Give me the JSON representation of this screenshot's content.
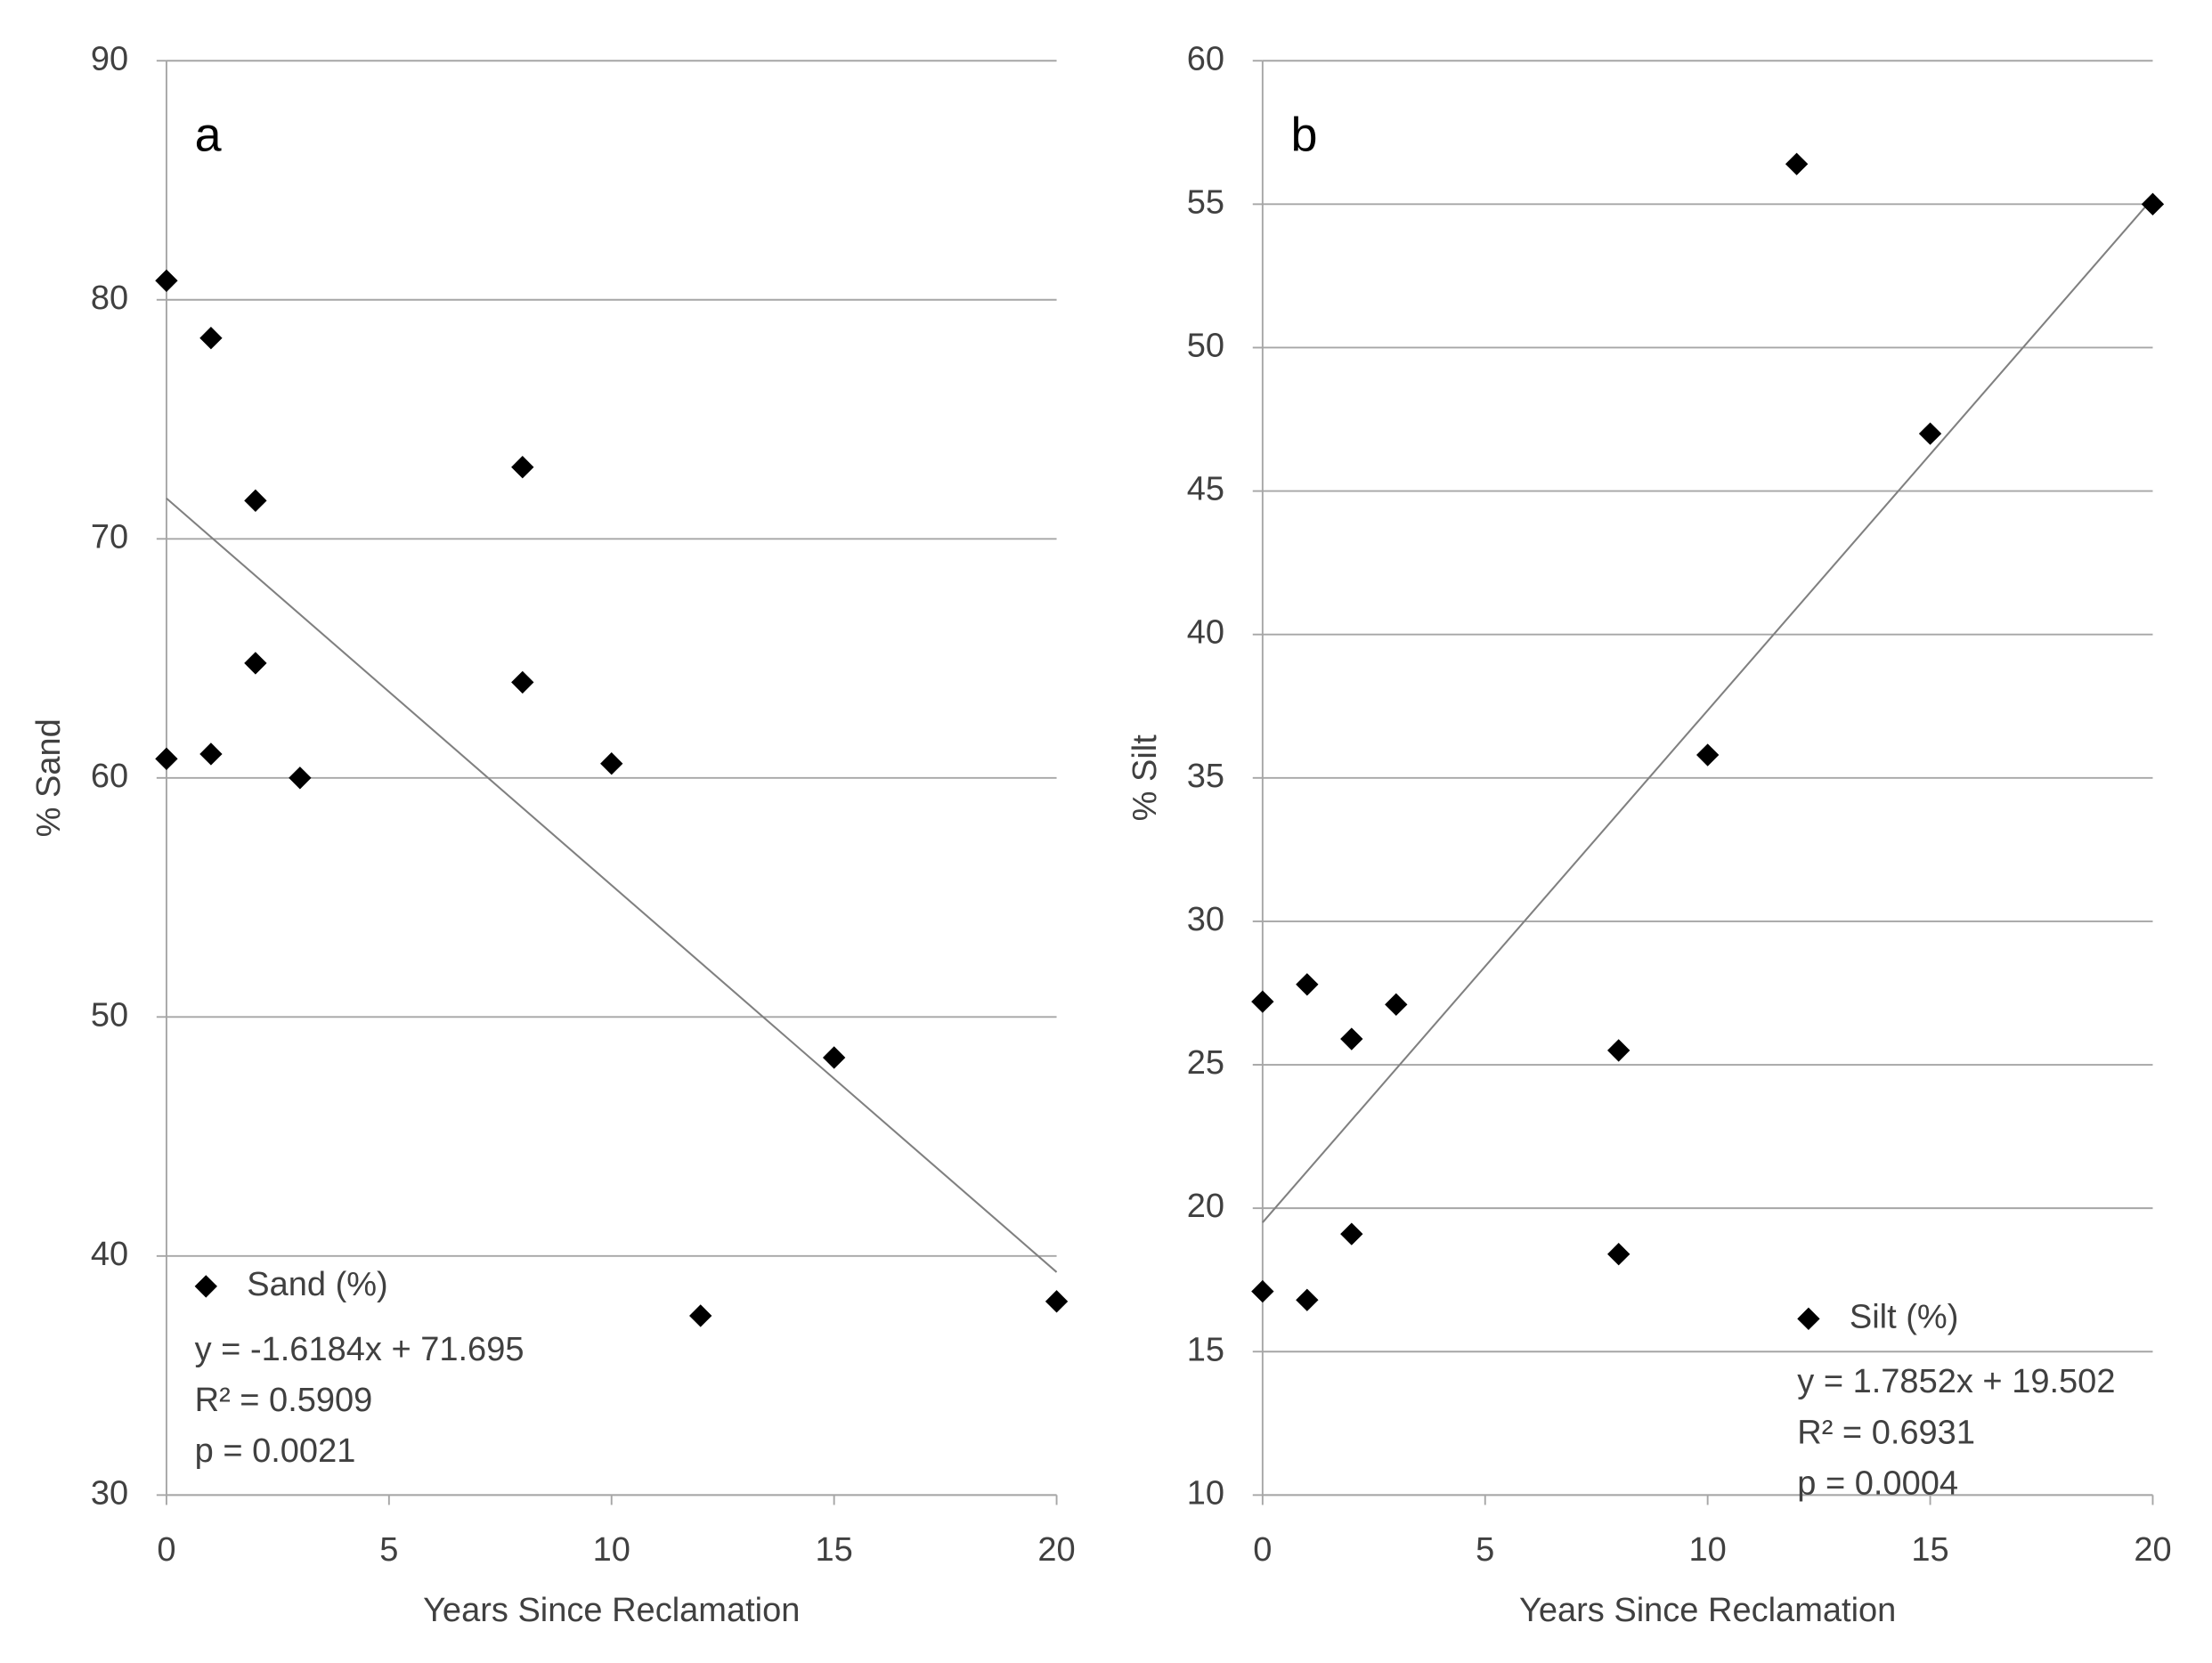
{
  "chart_data": [
    {
      "type": "scatter",
      "panel_label": "a",
      "x_label": "Years Since Reclamation",
      "y_label": "% Sand",
      "xlim": [
        0,
        20
      ],
      "ylim": [
        30,
        90
      ],
      "xticks": [
        0,
        5,
        10,
        15,
        20
      ],
      "yticks": [
        30,
        40,
        50,
        60,
        70,
        80,
        90
      ],
      "grid": true,
      "legend": "lower left",
      "series": [
        {
          "name": "Sand (%)",
          "color": "#000000",
          "x": [
            0,
            1,
            2,
            8,
            2,
            8,
            0,
            1,
            3,
            10,
            15,
            12,
            20
          ],
          "values": [
            80.8,
            78.4,
            71.6,
            73.0,
            64.8,
            64.0,
            60.8,
            61.0,
            60.0,
            60.6,
            48.3,
            37.5,
            38.1
          ]
        }
      ],
      "trendline": {
        "slope": -1.6184,
        "intercept": 71.695,
        "color": "#808080"
      },
      "annotations": [
        "y = -1.6184x + 71.695",
        "R² = 0.5909",
        "p = 0.0021"
      ]
    },
    {
      "type": "scatter",
      "panel_label": "b",
      "x_label": "Years Since Reclamation",
      "y_label": "% Silt",
      "xlim": [
        0,
        20
      ],
      "ylim": [
        10,
        60
      ],
      "xticks": [
        0,
        5,
        10,
        15,
        20
      ],
      "yticks": [
        10,
        15,
        20,
        25,
        30,
        35,
        40,
        45,
        50,
        55,
        60
      ],
      "grid": true,
      "legend": "lower right",
      "series": [
        {
          "name": "Silt (%)",
          "color": "#000000",
          "x": [
            0,
            1,
            2,
            3,
            8,
            12,
            20,
            15,
            10,
            2,
            8,
            0,
            1
          ],
          "values": [
            27.2,
            27.8,
            25.9,
            27.1,
            25.5,
            56.4,
            55.0,
            47.0,
            35.8,
            19.1,
            18.4,
            17.1,
            16.8
          ]
        }
      ],
      "trendline": {
        "slope": 1.7852,
        "intercept": 19.502,
        "color": "#808080"
      },
      "annotations": [
        "y = 1.7852x + 19.502",
        "R² = 0.6931",
        "p = 0.0004"
      ]
    }
  ]
}
